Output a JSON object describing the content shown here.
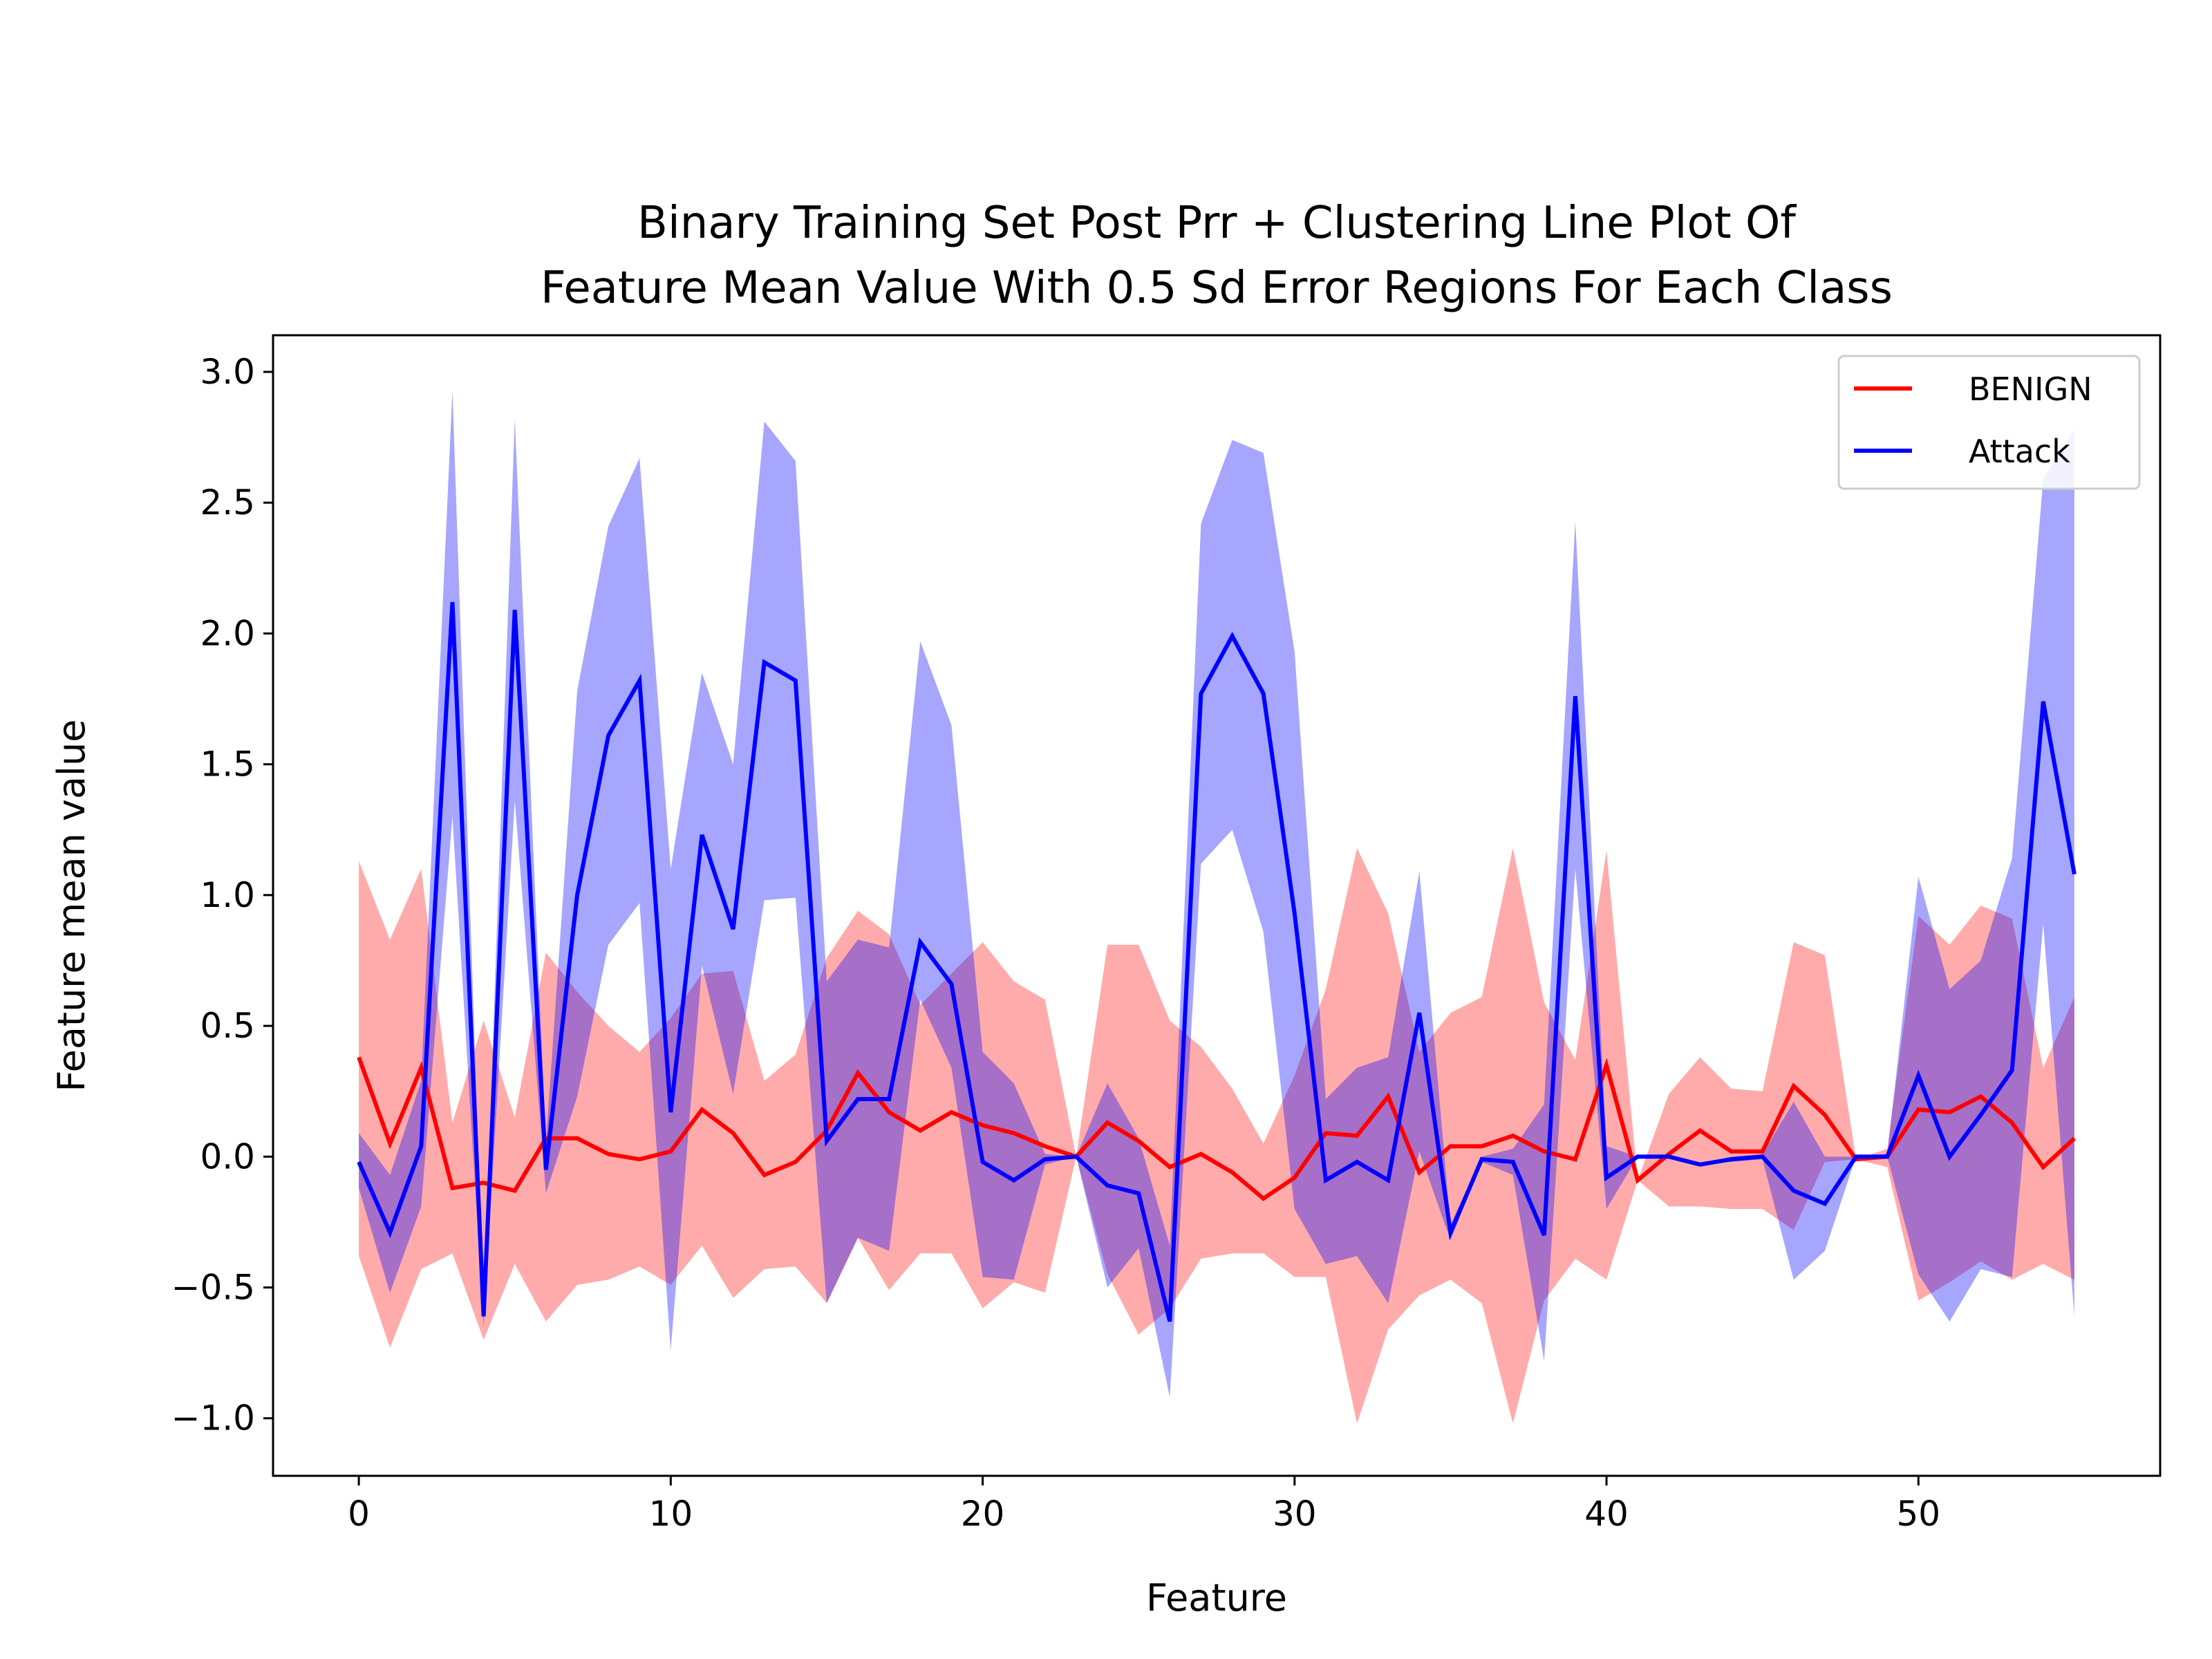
{
  "chart_data": {
    "type": "line",
    "title_lines": [
      "Binary Training Set Post Prr + Clustering Line Plot Of",
      "Feature Mean Value With 0.5 Sd Error Regions For Each Class"
    ],
    "xlabel": "Feature",
    "ylabel": "Feature mean value",
    "xlim": [
      -2.75,
      57.75
    ],
    "ylim": [
      -1.22,
      3.14
    ],
    "xticks": [
      0,
      10,
      20,
      30,
      40,
      50
    ],
    "xtick_labels": [
      "0",
      "10",
      "20",
      "30",
      "40",
      "50"
    ],
    "yticks": [
      -1.0,
      -0.5,
      0.0,
      0.5,
      1.0,
      1.5,
      2.0,
      2.5,
      3.0
    ],
    "ytick_labels": [
      "−1.0",
      "−0.5",
      "0.0",
      "0.5",
      "1.0",
      "1.5",
      "2.0",
      "2.5",
      "3.0"
    ],
    "grid": false,
    "legend_position": "top-right",
    "series": [
      {
        "name": "BENIGN",
        "color": "#ff0000",
        "fill_color": "#ff0000",
        "fill_opacity": 0.33,
        "values": [
          0.38,
          0.05,
          0.34,
          -0.12,
          -0.1,
          -0.13,
          0.07,
          0.07,
          0.01,
          -0.01,
          0.02,
          0.18,
          0.09,
          -0.07,
          -0.02,
          0.1,
          0.32,
          0.17,
          0.1,
          0.17,
          0.12,
          0.09,
          0.04,
          0.0,
          0.13,
          0.06,
          -0.04,
          0.01,
          -0.06,
          -0.16,
          -0.08,
          0.09,
          0.08,
          0.23,
          -0.06,
          0.04,
          0.04,
          0.08,
          0.02,
          -0.01,
          0.35,
          -0.09,
          0.01,
          0.1,
          0.02,
          0.02,
          0.27,
          0.16,
          -0.01,
          0.0,
          0.18,
          0.17,
          0.23,
          0.13,
          -0.04,
          0.07
        ],
        "lower": [
          -0.38,
          -0.73,
          -0.43,
          -0.37,
          -0.7,
          -0.41,
          -0.63,
          -0.49,
          -0.47,
          -0.42,
          -0.49,
          -0.34,
          -0.54,
          -0.43,
          -0.42,
          -0.56,
          -0.31,
          -0.51,
          -0.37,
          -0.37,
          -0.58,
          -0.48,
          -0.52,
          0.0,
          -0.45,
          -0.68,
          -0.58,
          -0.39,
          -0.37,
          -0.37,
          -0.46,
          -0.46,
          -1.02,
          -0.66,
          -0.53,
          -0.47,
          -0.56,
          -1.02,
          -0.55,
          -0.39,
          -0.47,
          -0.09,
          -0.19,
          -0.19,
          -0.2,
          -0.2,
          -0.28,
          -0.02,
          -0.01,
          -0.04,
          -0.55,
          -0.48,
          -0.4,
          -0.47,
          -0.41,
          -0.47
        ],
        "upper": [
          1.13,
          0.83,
          1.1,
          0.13,
          0.52,
          0.15,
          0.78,
          0.63,
          0.5,
          0.4,
          0.53,
          0.7,
          0.71,
          0.29,
          0.39,
          0.76,
          0.94,
          0.85,
          0.58,
          0.7,
          0.82,
          0.67,
          0.6,
          0.0,
          0.81,
          0.81,
          0.52,
          0.42,
          0.26,
          0.05,
          0.31,
          0.64,
          1.18,
          0.93,
          0.4,
          0.55,
          0.61,
          1.18,
          0.59,
          0.37,
          1.17,
          -0.09,
          0.24,
          0.38,
          0.26,
          0.25,
          0.82,
          0.77,
          -0.01,
          0.03,
          0.92,
          0.81,
          0.96,
          0.91,
          0.34,
          0.61
        ]
      },
      {
        "name": "Attack",
        "color": "#0000ff",
        "fill_color": "#0000ff",
        "fill_opacity": 0.35,
        "values": [
          -0.02,
          -0.29,
          0.04,
          2.12,
          -0.61,
          2.09,
          -0.05,
          1.0,
          1.61,
          1.82,
          0.17,
          1.23,
          0.87,
          1.89,
          1.82,
          0.06,
          0.22,
          0.22,
          0.82,
          0.66,
          -0.02,
          -0.09,
          -0.01,
          0.0,
          -0.11,
          -0.14,
          -0.63,
          1.77,
          1.99,
          1.77,
          0.93,
          -0.09,
          -0.02,
          -0.09,
          0.55,
          -0.29,
          -0.01,
          -0.02,
          -0.3,
          1.76,
          -0.08,
          0.0,
          0.0,
          -0.03,
          -0.01,
          0.0,
          -0.13,
          -0.18,
          0.0,
          0.0,
          0.31,
          0.0,
          0.16,
          0.33,
          1.74,
          1.08
        ],
        "lower": [
          -0.12,
          -0.52,
          -0.19,
          1.3,
          -0.65,
          1.36,
          -0.14,
          0.23,
          0.81,
          0.97,
          -0.74,
          0.73,
          0.24,
          0.98,
          0.99,
          -0.56,
          -0.31,
          -0.36,
          0.6,
          0.34,
          -0.46,
          -0.47,
          -0.03,
          0.0,
          -0.5,
          -0.35,
          -0.92,
          1.12,
          1.25,
          0.86,
          -0.2,
          -0.41,
          -0.38,
          -0.56,
          0.02,
          -0.32,
          -0.02,
          -0.07,
          -0.78,
          1.1,
          -0.2,
          0.0,
          0.0,
          -0.03,
          -0.02,
          -0.01,
          -0.47,
          -0.36,
          0.0,
          0.0,
          -0.45,
          -0.63,
          -0.43,
          -0.46,
          0.89,
          -0.61
        ],
        "upper": [
          0.09,
          -0.07,
          0.29,
          2.93,
          -0.57,
          2.82,
          0.05,
          1.78,
          2.41,
          2.67,
          1.1,
          1.85,
          1.5,
          2.81,
          2.66,
          0.67,
          0.83,
          0.8,
          1.97,
          1.65,
          0.4,
          0.28,
          0.01,
          0.0,
          0.28,
          0.07,
          -0.34,
          2.42,
          2.74,
          2.69,
          1.93,
          0.22,
          0.34,
          0.38,
          1.09,
          -0.26,
          0.0,
          0.03,
          0.2,
          2.43,
          0.04,
          0.0,
          0.0,
          -0.03,
          0.0,
          0.01,
          0.21,
          0.0,
          0.0,
          0.01,
          1.07,
          0.64,
          0.75,
          1.14,
          2.59,
          2.78
        ]
      }
    ]
  }
}
